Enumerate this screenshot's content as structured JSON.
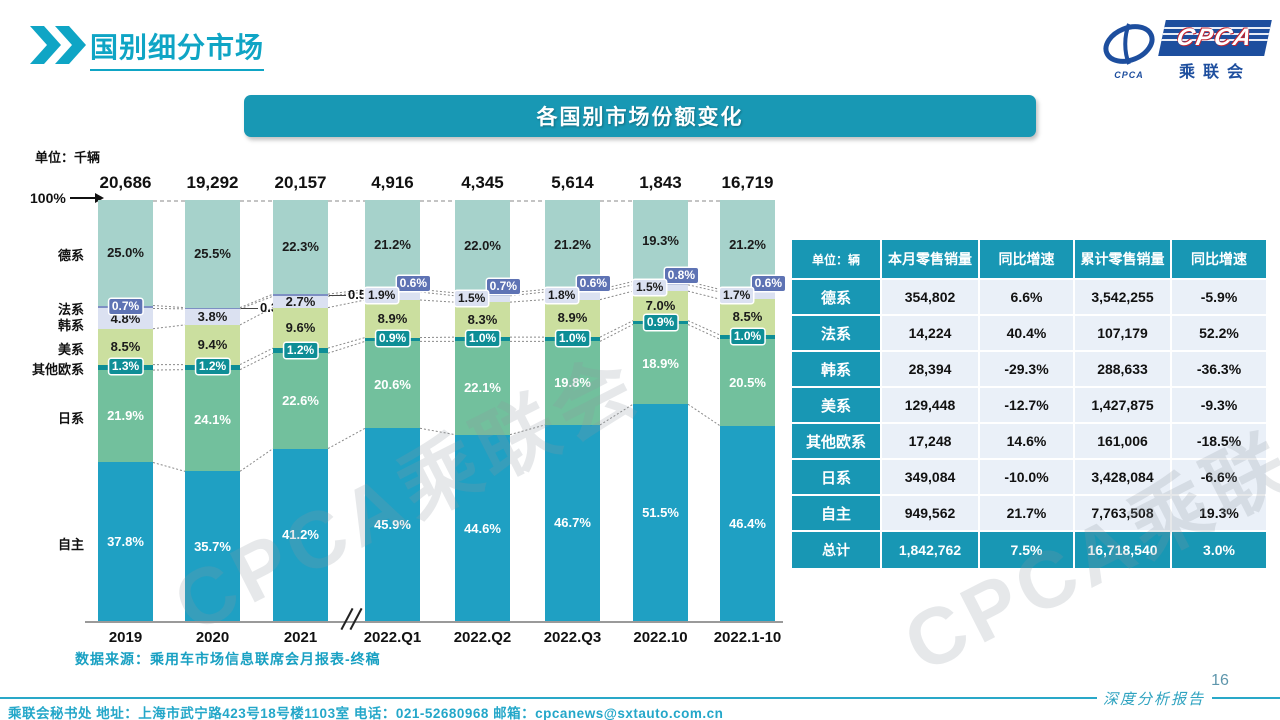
{
  "header": {
    "title": "国别细分市场",
    "logo": {
      "cpca": "CPCA",
      "sub": "乘联会"
    }
  },
  "banner": {
    "title": "各国别市场份额变化"
  },
  "chart": {
    "unit_note": "单位：千辆",
    "axis_max_label": "100%",
    "source": "数据来源：乘用车市场信息联席会月报表-终稿"
  },
  "chart_data": {
    "type": "bar",
    "stacked": true,
    "percent": true,
    "title": "各国别市场份额变化",
    "unit": "千辆",
    "ylim": [
      0,
      100
    ],
    "legend_position": "left-labels",
    "grid": false,
    "categories": [
      "2019",
      "2020",
      "2021",
      "2022.Q1",
      "2022.Q2",
      "2022.Q3",
      "2022.10",
      "2022.1-10"
    ],
    "totals": [
      "20,686",
      "19,292",
      "20,157",
      "4,916",
      "4,345",
      "5,614",
      "1,843",
      "16,719"
    ],
    "series_order": "top-to-bottom",
    "series": [
      {
        "name": "德系",
        "values": [
          25.0,
          25.5,
          22.3,
          21.2,
          22.0,
          21.2,
          19.3,
          21.2
        ],
        "color": "#A6D2CB",
        "label_color": "#1a1a1a",
        "label_mode": [
          "in",
          "in",
          "in",
          "in",
          "in",
          "in",
          "in",
          "in"
        ]
      },
      {
        "name": "法系",
        "values": [
          0.7,
          0.3,
          0.5,
          0.6,
          0.7,
          0.6,
          0.8,
          0.6
        ],
        "color": "#7D8FC3",
        "chip_color": "#5E73B4",
        "label_color": "#ffffff",
        "label_mode": [
          "chip",
          "out",
          "out",
          "chip-right",
          "chip-right",
          "chip-right",
          "chip-right",
          "chip-right"
        ]
      },
      {
        "name": "韩系",
        "values": [
          4.8,
          3.8,
          2.7,
          1.9,
          1.5,
          1.8,
          1.5,
          1.7
        ],
        "color": "#DBE1F1",
        "chip_color": "#DBE1F1",
        "label_color": "#1a1a1a",
        "label_mode": [
          "in",
          "in",
          "in",
          "chip-left",
          "chip-left",
          "chip-left",
          "chip-left",
          "chip-left"
        ]
      },
      {
        "name": "美系",
        "values": [
          8.5,
          9.4,
          9.6,
          8.9,
          8.3,
          8.9,
          7.0,
          8.5
        ],
        "color": "#CBDF9F",
        "label_color": "#1a1a1a",
        "label_mode": [
          "in",
          "in",
          "in",
          "in",
          "in",
          "in",
          "in",
          "in"
        ]
      },
      {
        "name": "其他欧系",
        "values": [
          1.3,
          1.2,
          1.2,
          0.9,
          1.0,
          1.0,
          0.9,
          1.0
        ],
        "color": "#0E8E96",
        "chip_color": "#0E8E96",
        "label_color": "#ffffff",
        "label_mode": [
          "chip",
          "chip",
          "chip",
          "chip",
          "chip",
          "chip",
          "chip",
          "chip"
        ]
      },
      {
        "name": "日系",
        "values": [
          21.9,
          24.1,
          22.6,
          20.6,
          22.1,
          19.8,
          18.9,
          20.5
        ],
        "color": "#72C09D",
        "label_color": "#ffffff",
        "label_mode": [
          "in",
          "in",
          "in",
          "in",
          "in",
          "in",
          "in",
          "in"
        ]
      },
      {
        "name": "自主",
        "values": [
          37.8,
          35.7,
          41.2,
          45.9,
          44.6,
          46.7,
          51.5,
          46.4
        ],
        "color": "#1FA0C3",
        "label_color": "#ffffff",
        "label_mode": [
          "in",
          "in",
          "in",
          "in",
          "in",
          "in",
          "in",
          "in"
        ]
      }
    ]
  },
  "table": {
    "unit_header": "单位：辆",
    "columns": [
      "本月零售销量",
      "同比增速",
      "累计零售销量",
      "同比增速"
    ],
    "rows": [
      {
        "label": "德系",
        "cells": [
          "354,802",
          "6.6%",
          "3,542,255",
          "-5.9%"
        ]
      },
      {
        "label": "法系",
        "cells": [
          "14,224",
          "40.4%",
          "107,179",
          "52.2%"
        ]
      },
      {
        "label": "韩系",
        "cells": [
          "28,394",
          "-29.3%",
          "288,633",
          "-36.3%"
        ]
      },
      {
        "label": "美系",
        "cells": [
          "129,448",
          "-12.7%",
          "1,427,875",
          "-9.3%"
        ]
      },
      {
        "label": "其他欧系",
        "cells": [
          "17,248",
          "14.6%",
          "161,006",
          "-18.5%"
        ]
      },
      {
        "label": "日系",
        "cells": [
          "349,084",
          "-10.0%",
          "3,428,084",
          "-6.6%"
        ]
      },
      {
        "label": "自主",
        "cells": [
          "949,562",
          "21.7%",
          "7,763,508",
          "19.3%"
        ]
      }
    ],
    "total": {
      "label": "总计",
      "cells": [
        "1,842,762",
        "7.5%",
        "16,718,540",
        "3.0%"
      ]
    }
  },
  "watermark_text": "CPCA乘联会",
  "footer": {
    "source_org": "乘联会秘书处",
    "contact": "乘联会秘书处   地址：上海市武宁路423号18号楼1103室  电话：021-52680968   邮箱：cpcanews@sxtauto.com.cn",
    "report_label": "深度分析报告",
    "page_number": "16"
  },
  "colors": {
    "brand_teal": "#1898B4",
    "title_teal": "#0FA5C5",
    "footer_teal": "#29A8C8",
    "table_cell_bg": "#EAF0F8"
  }
}
